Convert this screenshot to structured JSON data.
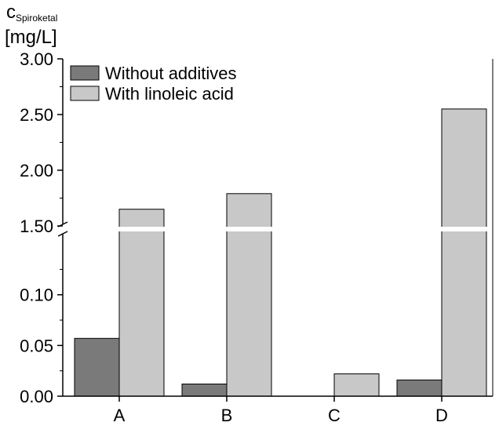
{
  "chart_data": {
    "type": "bar",
    "ylabel": {
      "symbol": "c",
      "subscript": "Spiroketal",
      "unit": "[mg/L]"
    },
    "categories": [
      "A",
      "B",
      "C",
      "D"
    ],
    "series": [
      {
        "name": "Without additives",
        "color": "#7a7a7a",
        "values": [
          0.057,
          0.012,
          0.0,
          0.016
        ]
      },
      {
        "name": "With linoleic acid",
        "color": "#c8c8c8",
        "values": [
          1.65,
          1.79,
          0.022,
          2.55
        ]
      }
    ],
    "broken_axis": {
      "lower_range": [
        0,
        0.14
      ],
      "upper_range": [
        1.5,
        3.0
      ],
      "lower_ticks": [
        "0.00",
        "0.05",
        "0.10"
      ],
      "upper_ticks": [
        "1.50",
        "2.00",
        "2.50",
        "3.00"
      ]
    },
    "legend_position": "top-left",
    "grid": false
  }
}
